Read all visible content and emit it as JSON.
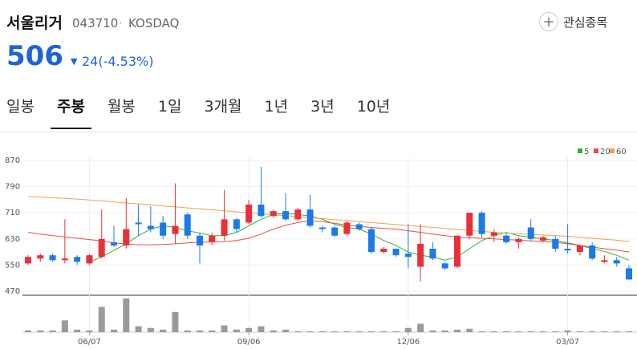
{
  "header": {
    "name": "서울리거",
    "code": "043710",
    "separator": "·",
    "market": "KOSDAQ",
    "favorite": "관심종목",
    "price": "506",
    "direction": "▼",
    "change": "24(-4.53%)"
  },
  "tabs": {
    "items": [
      "일봉",
      "주봉",
      "월봉",
      "1일",
      "3개월",
      "1년",
      "3년",
      "10년"
    ],
    "active": 1
  },
  "chart_data": {
    "type": "candlestick",
    "up_color": "#e8303a",
    "down_color": "#1a7be8",
    "categories": [
      null,
      null,
      null,
      null,
      null,
      "06/07",
      null,
      null,
      null,
      null,
      null,
      null,
      null,
      null,
      null,
      null,
      null,
      null,
      "09/06",
      null,
      null,
      null,
      null,
      null,
      null,
      null,
      null,
      null,
      null,
      null,
      null,
      "12/06",
      null,
      null,
      null,
      null,
      null,
      null,
      null,
      null,
      null,
      null,
      null,
      null,
      "03/07",
      null,
      null,
      null,
      null,
      null
    ],
    "open": [
      555,
      570,
      580,
      565,
      575,
      555,
      575,
      620,
      610,
      680,
      670,
      680,
      645,
      705,
      640,
      620,
      640,
      690,
      680,
      735,
      700,
      715,
      690,
      720,
      665,
      665,
      645,
      675,
      660,
      590,
      600,
      585,
      545,
      600,
      555,
      545,
      640,
      710,
      640,
      640,
      620,
      665,
      625,
      630,
      600,
      590,
      610,
      560,
      565,
      540
    ],
    "high": [
      580,
      585,
      585,
      690,
      580,
      585,
      720,
      670,
      755,
      735,
      730,
      700,
      800,
      710,
      650,
      650,
      780,
      695,
      750,
      850,
      720,
      770,
      725,
      765,
      670,
      670,
      685,
      680,
      665,
      605,
      600,
      675,
      675,
      620,
      560,
      640,
      710,
      715,
      660,
      645,
      635,
      690,
      640,
      640,
      675,
      610,
      620,
      580,
      575,
      550
    ],
    "low": [
      550,
      560,
      560,
      555,
      550,
      550,
      570,
      605,
      600,
      640,
      650,
      630,
      615,
      630,
      555,
      610,
      625,
      650,
      675,
      695,
      695,
      685,
      685,
      665,
      650,
      635,
      640,
      655,
      585,
      585,
      575,
      540,
      500,
      565,
      535,
      540,
      630,
      635,
      620,
      615,
      600,
      625,
      620,
      590,
      585,
      580,
      565,
      555,
      545,
      505
    ],
    "close": [
      575,
      580,
      565,
      570,
      560,
      580,
      630,
      610,
      660,
      675,
      660,
      640,
      670,
      640,
      610,
      640,
      690,
      660,
      735,
      700,
      715,
      690,
      720,
      670,
      660,
      640,
      680,
      660,
      590,
      600,
      580,
      575,
      615,
      570,
      540,
      640,
      710,
      645,
      650,
      620,
      630,
      630,
      635,
      600,
      595,
      610,
      570,
      565,
      555,
      506
    ],
    "ylim": [
      470,
      870
    ],
    "yticks": [
      870,
      790,
      710,
      630,
      550,
      470
    ],
    "series": [
      {
        "name": "5",
        "color": "#2fb52f",
        "values": [
          null,
          null,
          null,
          null,
          null,
          560,
          575,
          595,
          615,
          640,
          660,
          670,
          665,
          655,
          648,
          640,
          640,
          650,
          670,
          690,
          705,
          708,
          705,
          700,
          690,
          675,
          665,
          660,
          645,
          625,
          610,
          590,
          580,
          575,
          565,
          575,
          600,
          625,
          640,
          650,
          640,
          635,
          630,
          625,
          618,
          610,
          600,
          592,
          580,
          565
        ]
      },
      {
        "name": "20",
        "color": "#f04a4a",
        "values": [
          650,
          645,
          640,
          636,
          632,
          628,
          624,
          618,
          614,
          612,
          612,
          613,
          615,
          618,
          620,
          621,
          622,
          625,
          632,
          645,
          660,
          672,
          680,
          685,
          683,
          678,
          672,
          668,
          665,
          662,
          660,
          655,
          650,
          645,
          640,
          636,
          634,
          632,
          630,
          628,
          626,
          624,
          622,
          620,
          615,
          610,
          605,
          600,
          596,
          590
        ]
      },
      {
        "name": "60",
        "color": "#f5a04a",
        "values": [
          760,
          758,
          756,
          754,
          752,
          749,
          746,
          743,
          740,
          737,
          734,
          731,
          728,
          725,
          722,
          719,
          716,
          713,
          710,
          707,
          704,
          701,
          698,
          695,
          692,
          689,
          686,
          683,
          680,
          677,
          674,
          671,
          668,
          665,
          662,
          659,
          656,
          653,
          650,
          648,
          646,
          644,
          642,
          640,
          638,
          635,
          632,
          629,
          626,
          622
        ]
      }
    ],
    "volume": {
      "color": "#9a9a9a",
      "values": [
        2,
        2,
        2,
        14,
        3,
        2,
        30,
        3,
        40,
        7,
        5,
        3,
        24,
        2,
        2,
        2,
        8,
        3,
        5,
        7,
        2,
        3,
        1,
        1,
        1,
        1,
        1,
        1,
        1,
        1,
        1,
        5,
        10,
        2,
        2,
        3,
        4,
        1,
        1,
        1,
        1,
        1,
        1,
        1,
        2,
        1,
        1,
        1,
        1,
        1
      ]
    }
  }
}
